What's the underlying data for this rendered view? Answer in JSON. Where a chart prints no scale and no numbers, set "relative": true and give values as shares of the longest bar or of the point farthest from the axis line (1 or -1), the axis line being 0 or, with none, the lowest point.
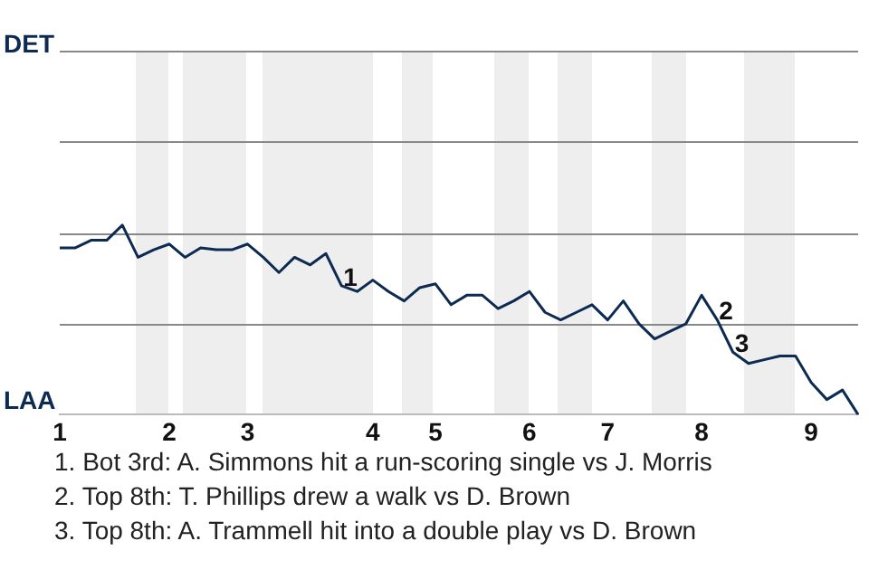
{
  "chart_data": {
    "type": "line",
    "color": "#0d2b52",
    "marker": "none",
    "legend": false,
    "relative": true,
    "ref_lines": [
      {
        "axis": "y",
        "value": 0.48,
        "color": "#888888"
      },
      {
        "axis": "y",
        "value": 0.96,
        "color": "#888888"
      },
      {
        "axis": "y",
        "value": 1.44,
        "color": "#888888"
      }
    ],
    "categories": [
      "1",
      null,
      null,
      null,
      null,
      null,
      null,
      "2",
      null,
      null,
      null,
      null,
      "3",
      null,
      null,
      null,
      null,
      null,
      null,
      null,
      "4",
      null,
      null,
      null,
      "5",
      null,
      null,
      null,
      null,
      null,
      "6",
      null,
      null,
      null,
      null,
      "7",
      null,
      null,
      null,
      null,
      null,
      "8",
      null,
      null,
      null,
      null,
      null,
      null,
      "9",
      null,
      null,
      null
    ],
    "values": [
      0.88,
      0.88,
      0.92,
      0.92,
      1,
      0.83,
      0.87,
      0.9,
      0.83,
      0.88,
      0.87,
      0.87,
      0.9,
      0.83,
      0.75,
      0.83,
      0.79,
      0.85,
      0.68,
      0.65,
      0.71,
      0.65,
      0.6,
      0.67,
      0.69,
      0.58,
      0.63,
      0.63,
      0.56,
      0.6,
      0.65,
      0.54,
      0.5,
      0.54,
      0.58,
      0.5,
      0.6,
      0.48,
      0.4,
      0.44,
      0.48,
      0.63,
      0.5,
      0.33,
      0.27,
      0.29,
      0.31,
      0.31,
      0.17,
      0.08,
      0.13,
      0
    ],
    "annotations": [
      {
        "text": "1",
        "y": 0.68
      },
      {
        "text": "2",
        "y": 0.5
      },
      {
        "text": "3",
        "y": 0.33
      },
      "DET",
      "LAA",
      "1. Bot 3rd: A. Simmons hit a run-scoring single vs J. Morris",
      "2. Top 8th: T. Phillips drew a walk vs D. Brown",
      "3. Top 8th: A. Trammell hit into a double play vs D. Brown"
    ]
  }
}
